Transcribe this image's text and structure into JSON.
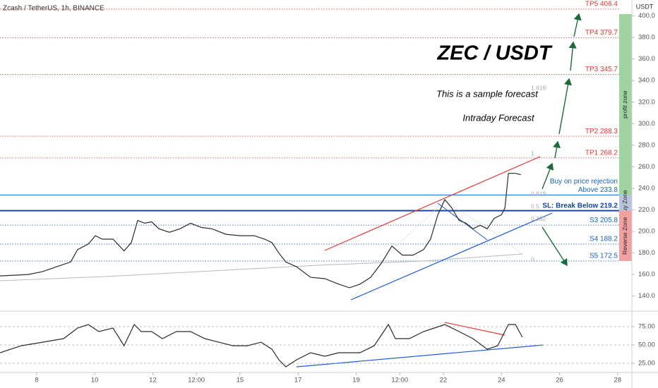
{
  "chart_data": [
    {
      "type": "line",
      "title": "Zcash / TetherUS, 1h, BINANCE",
      "y_label": "USDT",
      "annotations": [
        "ZEC / USDT",
        "This is a sample forecast",
        "Intraday Forecast"
      ],
      "xlim": [
        6.74,
        28.49
      ],
      "xticks": [
        {
          "value": 8,
          "label": "8"
        },
        {
          "value": 10,
          "label": "10"
        },
        {
          "value": 12,
          "label": "12"
        },
        {
          "value": 13.5,
          "label": "12:00"
        },
        {
          "value": 15,
          "label": "15"
        },
        {
          "value": 17,
          "label": "17"
        },
        {
          "value": 19,
          "label": "19"
        },
        {
          "value": 20.5,
          "label": "12:00"
        },
        {
          "value": 22,
          "label": "22"
        },
        {
          "value": 24,
          "label": "24"
        },
        {
          "value": 26,
          "label": "26"
        },
        {
          "value": 28,
          "label": "28"
        }
      ],
      "ylim": [
        126.0,
        414.8
      ],
      "yticks": [
        {
          "value": 140,
          "label": "140.0"
        },
        {
          "value": 160,
          "label": "160.0"
        },
        {
          "value": 180,
          "label": "180.0"
        },
        {
          "value": 200,
          "label": "200.0"
        },
        {
          "value": 220,
          "label": "220.0"
        },
        {
          "value": 240,
          "label": "240.0"
        },
        {
          "value": 260,
          "label": "260.0"
        },
        {
          "value": 280,
          "label": "280.0"
        },
        {
          "value": 300,
          "label": "300.0"
        },
        {
          "value": 320,
          "label": "320.0"
        },
        {
          "value": 340,
          "label": "340.0"
        },
        {
          "value": 360,
          "label": "360.0"
        },
        {
          "value": 380,
          "label": "380.0"
        },
        {
          "value": 400,
          "label": "400.0"
        }
      ],
      "x": [
        6.74,
        7.71,
        8.2,
        8.68,
        9.17,
        9.41,
        9.78,
        10.02,
        10.26,
        10.63,
        11.01,
        11.26,
        11.48,
        11.72,
        11.96,
        12.21,
        12.57,
        12.94,
        13.3,
        13.67,
        14.03,
        14.52,
        15.0,
        15.49,
        15.85,
        16.1,
        16.34,
        16.58,
        16.95,
        17.43,
        17.92,
        18.4,
        18.77,
        19.13,
        19.5,
        19.86,
        20.23,
        20.59,
        20.96,
        21.32,
        21.56,
        21.81,
        22.05,
        22.29,
        22.54,
        22.78,
        23.02,
        23.27,
        23.51,
        23.75,
        24.0,
        24.12,
        24.24,
        24.48,
        24.67
      ],
      "series": [
        {
          "color": "#2b2b2b",
          "values": [
            158.7,
            160.0,
            162.6,
            167.1,
            171.6,
            183.1,
            188.3,
            196.0,
            192.8,
            192.8,
            181.9,
            189.6,
            210.2,
            207.6,
            208.9,
            202.4,
            199.2,
            202.4,
            207.6,
            203.7,
            202.4,
            197.3,
            196.0,
            196.0,
            192.8,
            189.6,
            179.9,
            171.6,
            167.1,
            157.4,
            156.1,
            151.0,
            147.7,
            151.0,
            157.4,
            170.3,
            186.4,
            178.0,
            178.0,
            183.1,
            192.8,
            215.3,
            229.5,
            221.8,
            210.2,
            207.6,
            202.4,
            205.7,
            202.4,
            212.1,
            215.3,
            221.8,
            253.9,
            253.9,
            252.6
          ]
        }
      ],
      "levels": [
        {
          "label": "TP5 406.4",
          "value": 406.4,
          "color": "#e53935"
        },
        {
          "label": "TP4 379.7",
          "value": 379.7,
          "color": "#e53935"
        },
        {
          "label": "TP3 345.7",
          "value": 345.7,
          "color": "#e53935"
        },
        {
          "label": "TP2 288.3",
          "value": 288.3,
          "color": "#e53935"
        },
        {
          "label": "TP1 268.2",
          "value": 268.2,
          "color": "#e53935"
        },
        {
          "label": "Above 233.8",
          "note": "Buy on price rejection",
          "value": 233.8,
          "color": "#1565c0"
        },
        {
          "label": "SL: Break Below 219.2",
          "value": 219.2,
          "color": "#1546a8"
        },
        {
          "label": "S3 205.8",
          "value": 205.8,
          "color": "#1565c0"
        },
        {
          "label": "S4 188.2",
          "value": 188.2,
          "color": "#1565c0"
        },
        {
          "label": "S5 172.5",
          "value": 172.5,
          "color": "#1565c0"
        }
      ],
      "fib": [
        1.618,
        1,
        0.618,
        0.5,
        0.382,
        0
      ],
      "zones": [
        "profit zone",
        "Buy Zone",
        "Reverse Zone"
      ]
    },
    {
      "type": "line",
      "ylim": [
        13.5,
        92.3
      ],
      "yticks": [
        {
          "value": 25,
          "label": "25.00"
        },
        {
          "value": 50,
          "label": "50.00"
        },
        {
          "value": 75,
          "label": "75.00"
        }
      ],
      "x": [
        6.74,
        7.47,
        8.2,
        8.93,
        9.41,
        9.78,
        10.14,
        10.63,
        11.01,
        11.36,
        11.6,
        11.96,
        12.33,
        12.81,
        13.3,
        13.79,
        14.27,
        14.76,
        15.25,
        15.73,
        16.1,
        16.34,
        16.58,
        16.95,
        17.43,
        17.92,
        18.4,
        18.77,
        19.13,
        19.62,
        20.11,
        20.35,
        20.83,
        21.32,
        21.69,
        22.05,
        22.54,
        23.02,
        23.51,
        23.87,
        24.24,
        24.48,
        24.72
      ],
      "series": [
        {
          "color": "#2b2b2b",
          "values": [
            39.4,
            49.0,
            53.8,
            58.7,
            73.1,
            77.9,
            68.3,
            73.1,
            49.0,
            77.9,
            68.3,
            68.3,
            58.7,
            68.3,
            68.3,
            58.7,
            53.8,
            49.0,
            49.0,
            53.8,
            44.2,
            29.8,
            20.2,
            29.8,
            39.4,
            34.6,
            39.4,
            39.4,
            39.4,
            49.0,
            77.9,
            58.7,
            58.7,
            68.3,
            73.1,
            77.9,
            68.3,
            58.7,
            44.2,
            49.0,
            77.9,
            77.9,
            60.6
          ]
        }
      ]
    }
  ]
}
